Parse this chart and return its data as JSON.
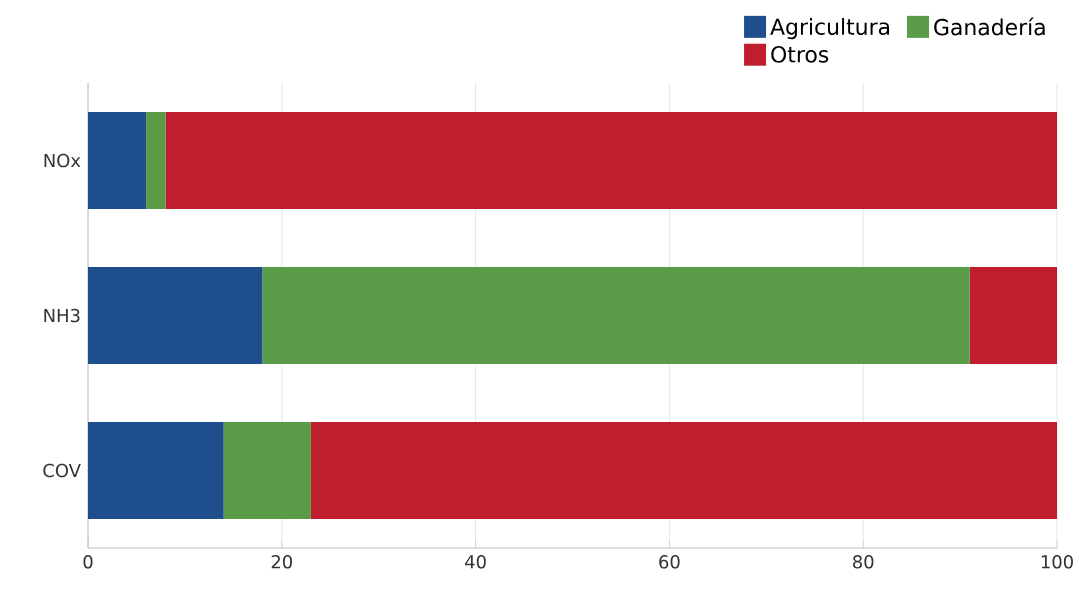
{
  "chart_data": {
    "type": "bar",
    "orientation": "horizontal",
    "stacked": true,
    "categories": [
      "NOx",
      "NH3",
      "COV"
    ],
    "series": [
      {
        "name": "Agricultura",
        "color": "#1f4e8c",
        "values": [
          6,
          18,
          14
        ]
      },
      {
        "name": "Ganadería",
        "color": "#5a9b47",
        "values": [
          2,
          73,
          9
        ]
      },
      {
        "name": "Otros",
        "color": "#be1e2d",
        "values": [
          92,
          9,
          77
        ]
      }
    ],
    "xlim": [
      0,
      100
    ],
    "xticks": [
      0,
      20,
      40,
      60,
      80,
      100
    ],
    "grid": "x",
    "legend": "top right"
  }
}
